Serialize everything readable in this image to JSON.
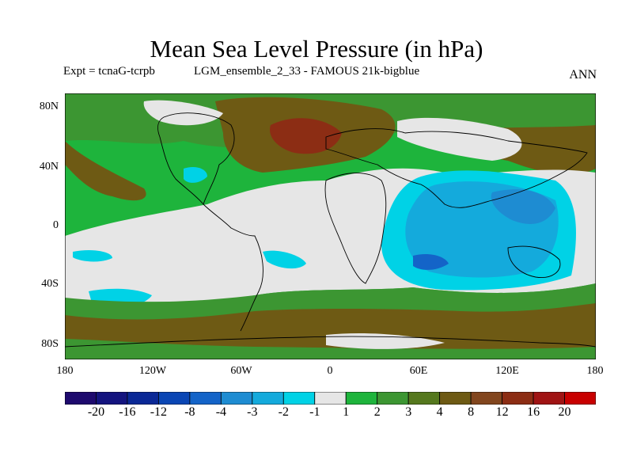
{
  "title": "Mean Sea Level Pressure (in hPa)",
  "expt_label": "Expt = tcnaG-tcrpb",
  "run_label": "LGM_ensemble_2_33 - FAMOUS 21k-bigblue",
  "season": "ANN",
  "y_ticks": [
    "80N",
    "40N",
    "0",
    "40S",
    "80S"
  ],
  "x_ticks": [
    "180",
    "120W",
    "60W",
    "0",
    "60E",
    "120E",
    "180"
  ],
  "colorbar": {
    "colors": [
      "#1e0a6e",
      "#14147f",
      "#0a2896",
      "#0a46b4",
      "#1464c8",
      "#1e8cd2",
      "#14aadc",
      "#00d2e6",
      "#e6e6e6",
      "#1eb43c",
      "#3c9632",
      "#55781e",
      "#6e5a14",
      "#82461e",
      "#8c2d14",
      "#a01414",
      "#c80000"
    ],
    "labels": [
      "-20",
      "-16",
      "-12",
      "-8",
      "-4",
      "-3",
      "-2",
      "-1",
      "1",
      "2",
      "3",
      "4",
      "8",
      "12",
      "16",
      "20"
    ]
  },
  "fills": {
    "ocean_positive": "#3c9632",
    "strong_positive": "#6e5a14",
    "very_strong": "#8c2d14",
    "neutral": "#e6e6e6",
    "light_positive": "#1eb43c",
    "neg_light": "#00d2e6",
    "neg_mid": "#14aadc",
    "neg_strong": "#1e8cd2",
    "neg_core": "#1464c8"
  }
}
